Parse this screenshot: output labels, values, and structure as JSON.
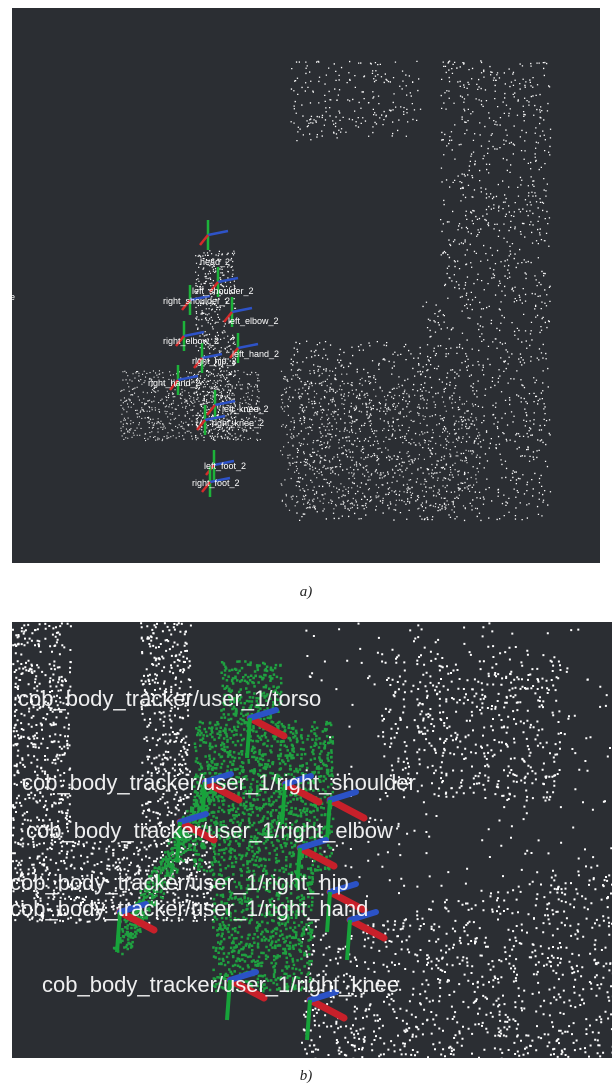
{
  "figure": {
    "panels": [
      {
        "caption": "a)",
        "labels": [
          "e",
          "head_2",
          "left_shoulder_2",
          "right_shoulder_2",
          "left_elbow_2",
          "right_elbow_2",
          "left_hand_2",
          "right_hip_2",
          "right_hand_2",
          "left_knee_2",
          "right_knee_2",
          "left_foot_2",
          "right_foot_2"
        ]
      },
      {
        "caption": "b)",
        "labels": [
          "cob_body_tracker/user_1/torso",
          "cob_body_tracker/user_1/right_shoulder",
          "cob_body_tracker/user_1/right_elbow",
          "cob_body_tracker/user_1/right_hip",
          "cob_body_tracker/user_1/right_hand",
          "cob_body_tracker/user_1/right_knee"
        ]
      }
    ]
  }
}
